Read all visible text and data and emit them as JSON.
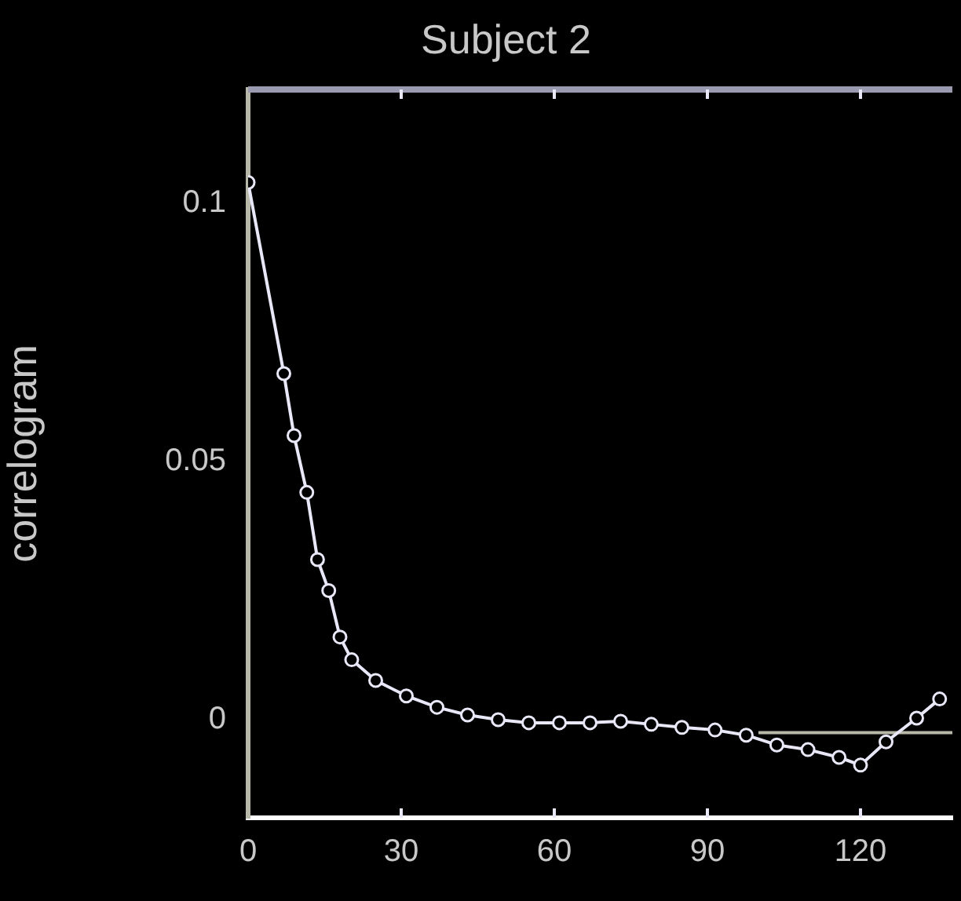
{
  "chart_data": {
    "type": "line",
    "title": "Subject 2",
    "ylabel": "correlogram",
    "xlim": [
      0,
      138
    ],
    "xticks": [
      0,
      30,
      60,
      90,
      120
    ],
    "ylim": [
      -0.019,
      0.122
    ],
    "yticks": [
      0,
      0.05,
      0.1
    ],
    "grid": false,
    "legend": false,
    "marker": "circle",
    "series": [
      {
        "color": "#e8e8f8",
        "x": [
          0,
          7,
          9,
          11.5,
          13.6,
          15.8,
          18,
          20.3,
          25,
          31,
          37,
          43,
          49,
          55,
          61,
          67,
          73,
          79,
          85,
          91.5,
          97.6,
          103.6,
          109.7,
          115.8,
          120,
          125,
          131,
          135.5
        ],
        "values": [
          0.104,
          0.067,
          0.055,
          0.044,
          0.031,
          0.025,
          0.016,
          0.0116,
          0.0076,
          0.0046,
          0.0024,
          0.0009,
          0,
          -0.0006,
          -0.0006,
          -0.0006,
          -0.0003,
          -0.0009,
          -0.0015,
          -0.002,
          -0.003,
          -0.0049,
          -0.0058,
          -0.0073,
          -0.0088,
          -0.0043,
          0.0003,
          0.004
        ]
      },
      {
        "type": "line",
        "marker": "none",
        "color": "#b8b8a8",
        "x": [
          100,
          138
        ],
        "values": [
          -0.0025,
          -0.0025
        ]
      }
    ]
  }
}
